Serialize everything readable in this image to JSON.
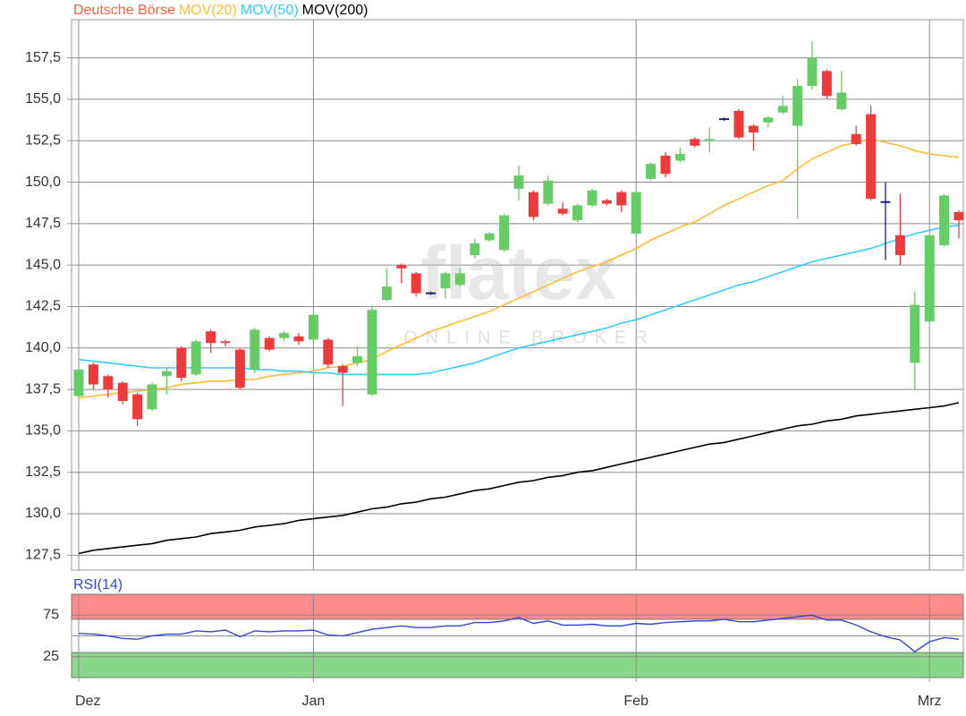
{
  "chart_data": [
    {
      "type": "candlestick",
      "watermark": {
        "logo": "flatex",
        "tagline": "ONLINE BROKER"
      },
      "ylim": [
        126.6,
        159.8
      ],
      "yticks": [
        {
          "value": 127.5,
          "label": "127,5"
        },
        {
          "value": 130,
          "label": "130,0"
        },
        {
          "value": 132.5,
          "label": "132,5"
        },
        {
          "value": 135,
          "label": "135,0"
        },
        {
          "value": 137.5,
          "label": "137,5"
        },
        {
          "value": 140,
          "label": "140,0"
        },
        {
          "value": 142.5,
          "label": "142,5"
        },
        {
          "value": 145,
          "label": "145,0"
        },
        {
          "value": 147.5,
          "label": "147,5"
        },
        {
          "value": 150,
          "label": "150,0"
        },
        {
          "value": 152.5,
          "label": "152,5"
        },
        {
          "value": 155,
          "label": "155,0"
        },
        {
          "value": 157.5,
          "label": "157,5"
        }
      ],
      "grid": true,
      "series": [
        {
          "name": "Deutsche Börse",
          "type": "candlestick",
          "color": "#ff6040",
          "up_color": "#66cc66",
          "down_color": "#ee3a3a",
          "flat_color": "#1a1a8c",
          "open": [
            137.1,
            139.0,
            138.3,
            137.9,
            137.2,
            136.3,
            138.3,
            140.0,
            138.4,
            141.0,
            140.4,
            139.9,
            138.7,
            140.6,
            140.6,
            140.7,
            140.5,
            140.5,
            138.9,
            139.1,
            137.2,
            142.9,
            145.0,
            144.5,
            143.3,
            143.6,
            143.8,
            145.6,
            146.5,
            145.9,
            149.6,
            149.4,
            148.7,
            148.4,
            147.7,
            148.6,
            148.9,
            149.4,
            146.9,
            150.2,
            151.6,
            151.3,
            152.6,
            152.5,
            153.8,
            154.3,
            153.4,
            153.6,
            154.2,
            153.4,
            155.8,
            156.7,
            154.4,
            152.9,
            154.1,
            148.8,
            146.8,
            139.1,
            141.6,
            146.2,
            148.2
          ],
          "high": [
            138.8,
            139.1,
            138.4,
            138.0,
            137.3,
            137.9,
            138.8,
            140.1,
            140.5,
            141.1,
            140.5,
            140.0,
            141.2,
            140.7,
            141.0,
            140.9,
            142.1,
            140.6,
            139.0,
            140.1,
            142.6,
            144.8,
            145.1,
            144.6,
            143.4,
            144.6,
            144.8,
            146.6,
            147.0,
            148.1,
            151.0,
            149.5,
            150.4,
            148.8,
            148.7,
            149.6,
            149.0,
            149.5,
            149.5,
            151.2,
            151.8,
            152.1,
            152.7,
            153.3,
            153.9,
            154.4,
            153.5,
            154.0,
            155.2,
            156.2,
            158.5,
            156.8,
            156.7,
            153.4,
            154.6,
            150.0,
            149.3,
            143.4,
            146.9,
            149.3,
            148.3
          ],
          "low": [
            137.0,
            137.5,
            137.0,
            136.6,
            135.3,
            136.2,
            137.2,
            138.0,
            138.3,
            139.7,
            140.1,
            137.5,
            138.5,
            139.8,
            140.4,
            140.2,
            140.3,
            138.8,
            136.5,
            138.9,
            137.1,
            142.8,
            143.9,
            143.1,
            143.2,
            143.0,
            143.7,
            145.4,
            146.4,
            145.8,
            148.9,
            147.7,
            148.6,
            148.0,
            147.6,
            148.5,
            148.6,
            148.2,
            146.8,
            150.1,
            150.3,
            151.2,
            152.1,
            151.8,
            153.7,
            152.6,
            151.9,
            153.3,
            154.1,
            147.8,
            155.6,
            155.0,
            154.3,
            152.2,
            148.9,
            145.3,
            145.0,
            137.5,
            141.5,
            146.1,
            146.6
          ],
          "close": [
            138.7,
            137.8,
            137.5,
            136.8,
            135.7,
            137.8,
            138.6,
            138.2,
            140.4,
            140.3,
            140.3,
            137.6,
            141.1,
            139.9,
            140.9,
            140.4,
            142.0,
            139.0,
            138.5,
            139.5,
            142.3,
            143.7,
            144.8,
            143.3,
            143.3,
            144.5,
            144.5,
            146.3,
            146.9,
            148.0,
            150.4,
            147.9,
            150.1,
            148.1,
            148.6,
            149.5,
            148.7,
            148.6,
            149.4,
            151.1,
            150.5,
            151.7,
            152.2,
            152.6,
            153.8,
            152.7,
            153.0,
            153.9,
            154.6,
            155.8,
            157.5,
            155.2,
            155.4,
            152.3,
            149.0,
            148.8,
            145.6,
            142.6,
            146.8,
            149.2,
            147.7
          ]
        },
        {
          "name": "MOV(20)",
          "type": "line",
          "color": "#ffbb33",
          "values": [
            137.0,
            137.1,
            137.2,
            137.3,
            137.4,
            137.5,
            137.6,
            137.8,
            137.9,
            138.0,
            138.0,
            138.1,
            138.1,
            138.3,
            138.4,
            138.5,
            138.6,
            138.8,
            138.9,
            139.1,
            139.3,
            139.8,
            140.2,
            140.6,
            141.0,
            141.3,
            141.6,
            141.9,
            142.2,
            142.6,
            143.0,
            143.4,
            143.8,
            144.2,
            144.6,
            144.9,
            145.2,
            145.6,
            146.0,
            146.5,
            146.9,
            147.3,
            147.6,
            148.1,
            148.6,
            149.0,
            149.4,
            149.8,
            150.1,
            150.8,
            151.4,
            151.8,
            152.2,
            152.4,
            152.6,
            152.4,
            152.2,
            151.9,
            151.7,
            151.6,
            151.5
          ]
        },
        {
          "name": "MOV(50)",
          "type": "line",
          "color": "#33ccff",
          "values": [
            139.3,
            139.2,
            139.1,
            139.0,
            138.9,
            138.8,
            138.8,
            138.8,
            138.8,
            138.8,
            138.8,
            138.8,
            138.7,
            138.7,
            138.6,
            138.6,
            138.5,
            138.5,
            138.4,
            138.4,
            138.4,
            138.4,
            138.4,
            138.4,
            138.5,
            138.7,
            138.9,
            139.1,
            139.4,
            139.7,
            140.0,
            140.2,
            140.4,
            140.6,
            140.8,
            141.0,
            141.2,
            141.5,
            141.7,
            142.0,
            142.3,
            142.6,
            142.9,
            143.2,
            143.5,
            143.8,
            144.0,
            144.3,
            144.6,
            144.9,
            145.2,
            145.4,
            145.6,
            145.8,
            146.0,
            146.3,
            146.6,
            146.9,
            147.1,
            147.3,
            147.4
          ]
        },
        {
          "name": "MOV(200)",
          "type": "line",
          "color": "#000000",
          "values": [
            127.6,
            127.8,
            127.9,
            128.0,
            128.1,
            128.2,
            128.4,
            128.5,
            128.6,
            128.8,
            128.9,
            129.0,
            129.2,
            129.3,
            129.4,
            129.6,
            129.7,
            129.8,
            129.9,
            130.1,
            130.3,
            130.4,
            130.6,
            130.7,
            130.9,
            131.0,
            131.2,
            131.4,
            131.5,
            131.7,
            131.9,
            132.0,
            132.2,
            132.3,
            132.5,
            132.6,
            132.8,
            133.0,
            133.2,
            133.4,
            133.6,
            133.8,
            134.0,
            134.2,
            134.3,
            134.5,
            134.7,
            134.9,
            135.1,
            135.3,
            135.4,
            135.6,
            135.7,
            135.9,
            136.0,
            136.1,
            136.2,
            136.3,
            136.4,
            136.5,
            136.7
          ]
        }
      ]
    },
    {
      "type": "line",
      "categories": [
        "Dez",
        null,
        null,
        null,
        null,
        null,
        null,
        null,
        null,
        null,
        null,
        null,
        null,
        null,
        null,
        null,
        "Jan",
        null,
        null,
        null,
        null,
        null,
        null,
        null,
        null,
        null,
        null,
        null,
        null,
        null,
        null,
        null,
        null,
        null,
        null,
        null,
        null,
        null,
        "Feb",
        null,
        null,
        null,
        null,
        null,
        null,
        null,
        null,
        null,
        null,
        null,
        null,
        null,
        null,
        null,
        null,
        null,
        null,
        null,
        "Mrz",
        null,
        null
      ],
      "ylim": [
        0,
        100
      ],
      "yticks": [
        25,
        75
      ],
      "hlines": [
        50
      ],
      "zones": [
        {
          "from": 70,
          "to": 100,
          "color": "#ff8a8a"
        },
        {
          "from": 0,
          "to": 30,
          "color": "#88d888"
        }
      ],
      "series": [
        {
          "name": "RSI(14)",
          "color": "#3344dd",
          "values": [
            53,
            52,
            50,
            47,
            46,
            50,
            52,
            52,
            56,
            55,
            57,
            49,
            56,
            55,
            56,
            56,
            57,
            51,
            50,
            54,
            58,
            60,
            62,
            60,
            60,
            62,
            62,
            66,
            66,
            68,
            72,
            65,
            68,
            63,
            63,
            64,
            62,
            62,
            65,
            64,
            66,
            67,
            68,
            68,
            70,
            67,
            67,
            69,
            71,
            73,
            75,
            69,
            69,
            63,
            55,
            49,
            45,
            31,
            43,
            48,
            46
          ]
        }
      ]
    }
  ]
}
